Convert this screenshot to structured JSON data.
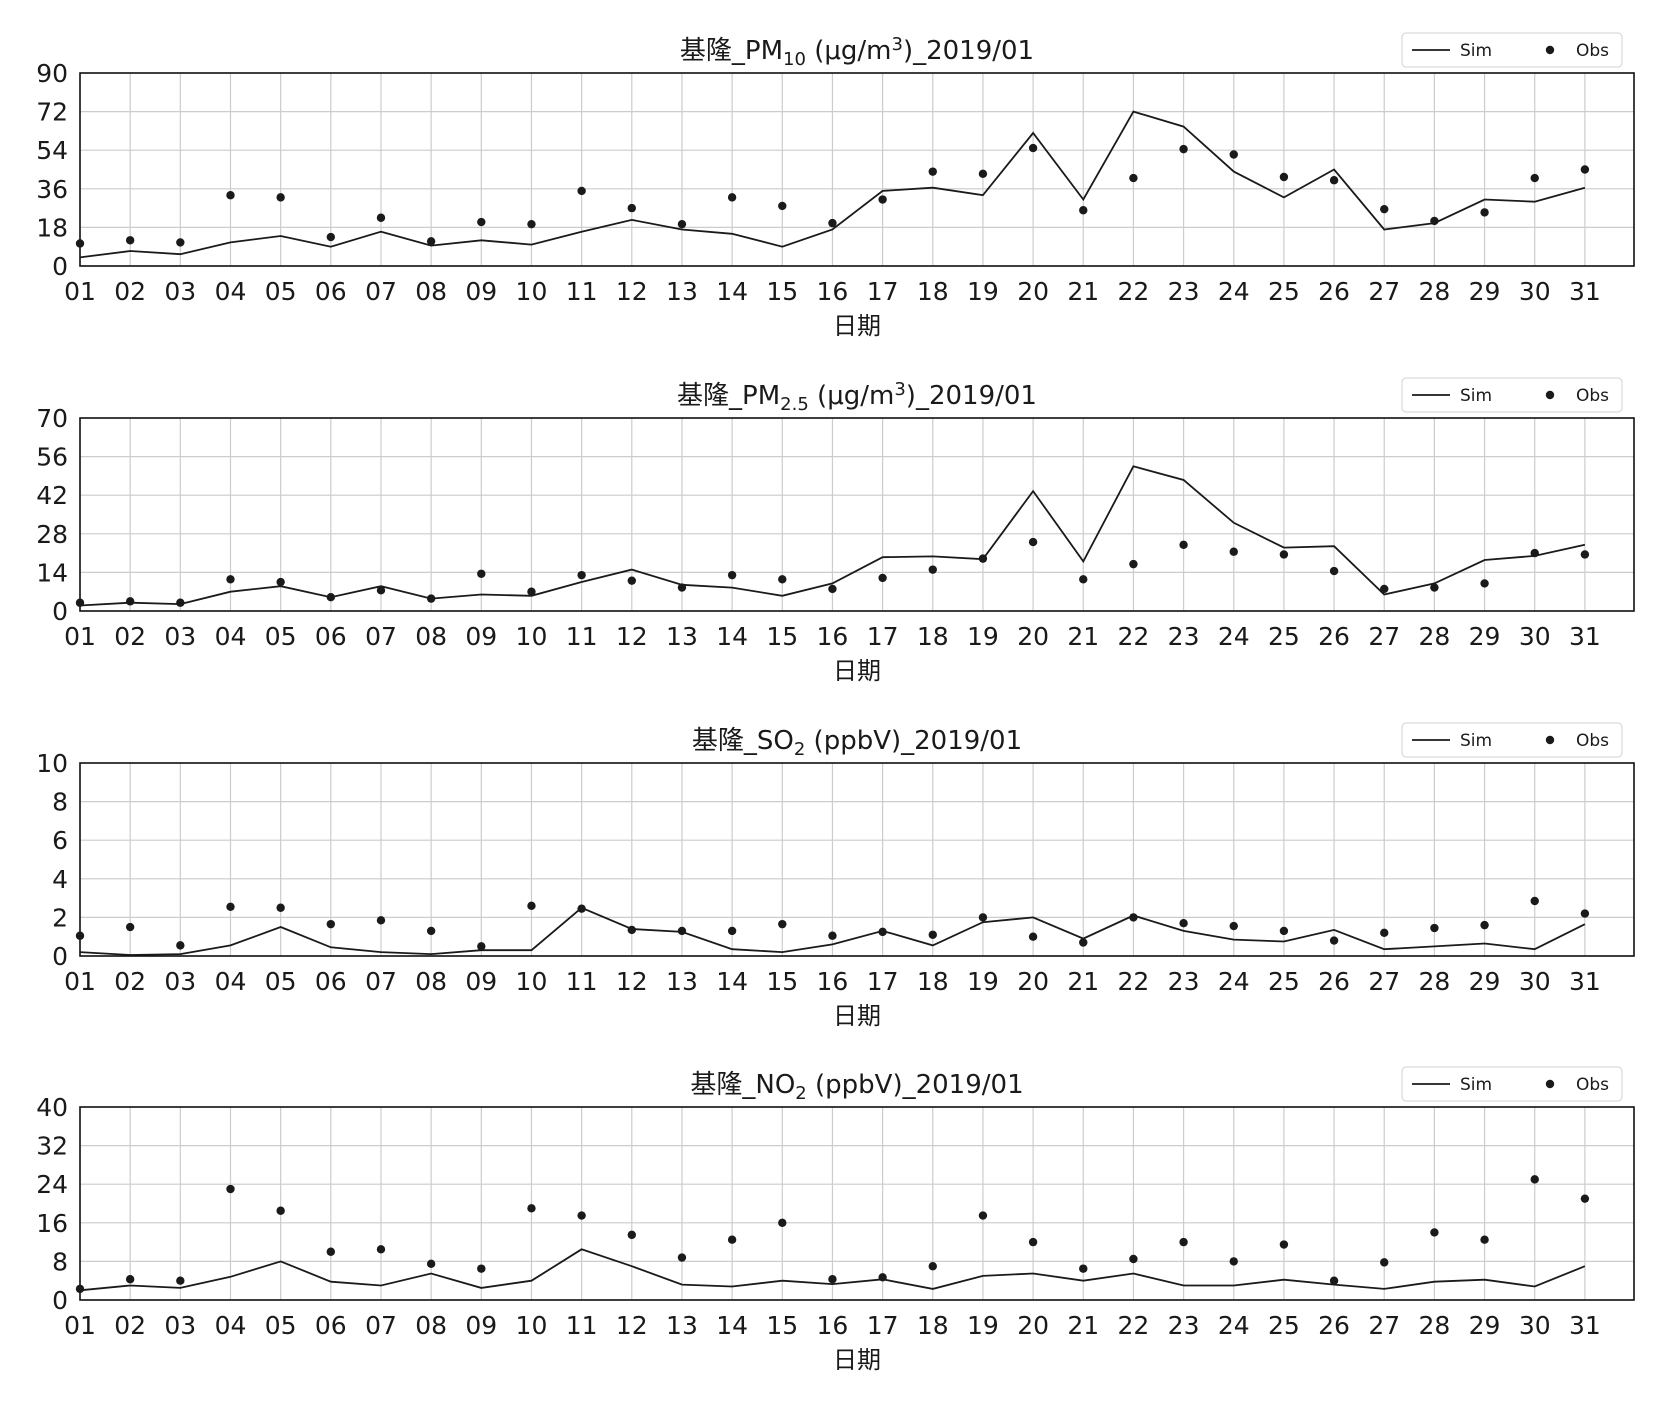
{
  "figure": {
    "legend_labels": {
      "sim": "Sim",
      "obs": "Obs"
    },
    "colors": {
      "line": "#1a1a1a",
      "dots": "#1a1a1a",
      "grid": "#cccccc"
    }
  },
  "chart_data": [
    {
      "type": "line",
      "title": {
        "pre": "基隆_PM",
        "sub": "10",
        "post": " (μg/m",
        "sup": "3",
        "tail": ")_2019/01"
      },
      "xlabel": "日期",
      "categories": [
        "01",
        "02",
        "03",
        "04",
        "05",
        "06",
        "07",
        "08",
        "09",
        "10",
        "11",
        "12",
        "13",
        "14",
        "15",
        "16",
        "17",
        "18",
        "19",
        "20",
        "21",
        "22",
        "23",
        "24",
        "25",
        "26",
        "27",
        "28",
        "29",
        "30",
        "31"
      ],
      "ylim": [
        0,
        90
      ],
      "yticks": [
        "0",
        "18",
        "36",
        "54",
        "72",
        "90"
      ],
      "grid": true,
      "legend_position": "top-right",
      "series": [
        {
          "name": "Sim",
          "kind": "line",
          "values": [
            4,
            7,
            5.5,
            11,
            14,
            9,
            16,
            9.5,
            12,
            10,
            16,
            21.5,
            17,
            15,
            9,
            17,
            35,
            36.5,
            33,
            62,
            31,
            72,
            65,
            44,
            32,
            45,
            17,
            20,
            31,
            30,
            36.5
          ]
        },
        {
          "name": "Obs",
          "kind": "scatter",
          "values": [
            10.5,
            12,
            11,
            33,
            32,
            13.5,
            22.5,
            11.5,
            20.5,
            19.5,
            35,
            27,
            19.5,
            32,
            28,
            20,
            31,
            44,
            43,
            55,
            26,
            41,
            54.5,
            52,
            41.5,
            40,
            26.5,
            21,
            25,
            41,
            45
          ]
        }
      ]
    },
    {
      "type": "line",
      "title": {
        "pre": "基隆_PM",
        "sub": "2.5",
        "post": " (μg/m",
        "sup": "3",
        "tail": ")_2019/01"
      },
      "xlabel": "日期",
      "categories": [
        "01",
        "02",
        "03",
        "04",
        "05",
        "06",
        "07",
        "08",
        "09",
        "10",
        "11",
        "12",
        "13",
        "14",
        "15",
        "16",
        "17",
        "18",
        "19",
        "20",
        "21",
        "22",
        "23",
        "24",
        "25",
        "26",
        "27",
        "28",
        "29",
        "30",
        "31"
      ],
      "ylim": [
        0,
        70
      ],
      "yticks": [
        "0",
        "14",
        "28",
        "42",
        "56",
        "70"
      ],
      "grid": true,
      "legend_position": "top-right",
      "series": [
        {
          "name": "Sim",
          "kind": "line",
          "values": [
            2,
            3,
            2.5,
            7,
            9,
            5,
            9,
            4.5,
            6,
            5.5,
            10.5,
            15,
            9.5,
            8.5,
            5.5,
            10,
            19.5,
            19.8,
            18.8,
            43.5,
            18,
            52.5,
            47.5,
            32,
            23,
            23.5,
            6,
            10,
            18.5,
            20,
            24
          ]
        },
        {
          "name": "Obs",
          "kind": "scatter",
          "values": [
            3,
            3.5,
            3,
            11.5,
            10.5,
            5,
            7.5,
            4.5,
            13.5,
            7,
            13,
            11,
            8.5,
            13,
            11.5,
            8,
            12,
            15,
            19,
            25,
            11.5,
            17,
            24,
            21.5,
            20.5,
            14.5,
            8,
            8.5,
            10,
            21,
            20.5
          ]
        }
      ]
    },
    {
      "type": "line",
      "title": {
        "pre": "基隆_SO",
        "sub": "2",
        "post": " (ppbV)_2019/01",
        "sup": "",
        "tail": ""
      },
      "xlabel": "日期",
      "categories": [
        "01",
        "02",
        "03",
        "04",
        "05",
        "06",
        "07",
        "08",
        "09",
        "10",
        "11",
        "12",
        "13",
        "14",
        "15",
        "16",
        "17",
        "18",
        "19",
        "20",
        "21",
        "22",
        "23",
        "24",
        "25",
        "26",
        "27",
        "28",
        "29",
        "30",
        "31"
      ],
      "ylim": [
        0,
        10
      ],
      "yticks": [
        "0",
        "2",
        "4",
        "6",
        "8",
        "10"
      ],
      "grid": true,
      "legend_position": "top-right",
      "series": [
        {
          "name": "Sim",
          "kind": "line",
          "values": [
            0.2,
            0.05,
            0.1,
            0.55,
            1.5,
            0.45,
            0.2,
            0.1,
            0.3,
            0.3,
            2.5,
            1.4,
            1.25,
            0.35,
            0.2,
            0.6,
            1.3,
            0.55,
            1.75,
            2.0,
            0.9,
            2.1,
            1.3,
            0.85,
            0.75,
            1.35,
            0.35,
            0.5,
            0.65,
            0.35,
            1.65
          ]
        },
        {
          "name": "Obs",
          "kind": "scatter",
          "values": [
            1.05,
            1.5,
            0.55,
            2.55,
            2.5,
            1.65,
            1.85,
            1.3,
            0.5,
            2.6,
            2.45,
            1.35,
            1.3,
            1.3,
            1.65,
            1.05,
            1.25,
            1.1,
            2.0,
            1.0,
            0.7,
            2.0,
            1.7,
            1.55,
            1.3,
            0.8,
            1.2,
            1.45,
            1.6,
            2.85,
            2.2
          ]
        }
      ]
    },
    {
      "type": "line",
      "title": {
        "pre": "基隆_NO",
        "sub": "2",
        "post": " (ppbV)_2019/01",
        "sup": "",
        "tail": ""
      },
      "xlabel": "日期",
      "categories": [
        "01",
        "02",
        "03",
        "04",
        "05",
        "06",
        "07",
        "08",
        "09",
        "10",
        "11",
        "12",
        "13",
        "14",
        "15",
        "16",
        "17",
        "18",
        "19",
        "20",
        "21",
        "22",
        "23",
        "24",
        "25",
        "26",
        "27",
        "28",
        "29",
        "30",
        "31"
      ],
      "ylim": [
        0,
        40
      ],
      "yticks": [
        "0",
        "8",
        "16",
        "24",
        "32",
        "40"
      ],
      "grid": true,
      "legend_position": "top-right",
      "series": [
        {
          "name": "Sim",
          "kind": "line",
          "values": [
            2,
            3,
            2.5,
            4.8,
            8,
            3.8,
            3,
            5.5,
            2.5,
            4,
            10.5,
            7,
            3.2,
            2.8,
            4,
            3.3,
            4.3,
            2.3,
            5,
            5.5,
            4,
            5.5,
            3,
            3,
            4.2,
            3.2,
            2.3,
            3.8,
            4.2,
            2.8,
            7
          ]
        },
        {
          "name": "Obs",
          "kind": "scatter",
          "values": [
            2.3,
            4.3,
            4,
            23,
            18.5,
            10,
            10.5,
            7.5,
            6.5,
            19,
            17.5,
            13.5,
            8.8,
            12.5,
            16,
            4.3,
            4.7,
            7,
            17.5,
            12,
            6.5,
            8.5,
            12,
            8,
            11.5,
            4,
            7.8,
            14,
            12.5,
            25,
            21
          ]
        }
      ]
    }
  ]
}
